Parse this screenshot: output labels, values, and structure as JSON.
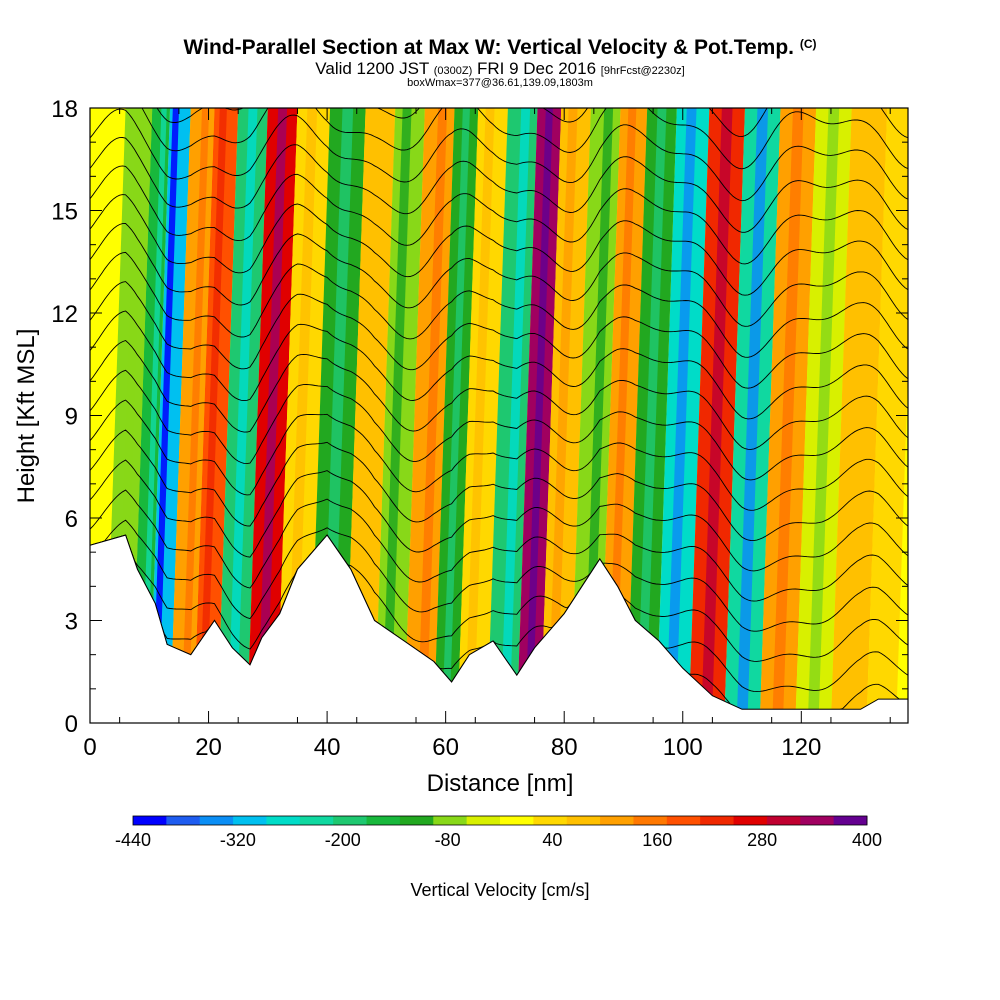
{
  "header": {
    "title": "Wind-Parallel Section at Max W: Vertical Velocity & Pot.Temp.",
    "copyright_mark": "(C)",
    "subtitle_main_a": "Valid 1200 JST ",
    "subtitle_utc": "(0300Z)",
    "subtitle_main_b": " FRI 9 Dec 2016 ",
    "subtitle_run": "[9hrFcst@2230z]",
    "subtitle_box": "boxWmax=377@36.61,139.09,1803m"
  },
  "chart_data": {
    "type": "heatmap",
    "title": "Wind-Parallel Section at Max W: Vertical Velocity & Pot.Temp.",
    "xlabel": "Distance [nm]",
    "ylabel": "Height [Kft MSL]",
    "xlim": [
      0,
      138
    ],
    "ylim": [
      0,
      18
    ],
    "x_ticks": [
      0,
      20,
      40,
      60,
      80,
      100,
      120
    ],
    "y_ticks": [
      0,
      3,
      6,
      9,
      12,
      15,
      18
    ],
    "colorbar": {
      "label": "Vertical Velocity [cm/s]",
      "tick_labels": [
        "-440",
        "-320",
        "-200",
        "-80",
        "40",
        "160",
        "280",
        "400"
      ],
      "levels": [
        -440,
        -400,
        -360,
        -320,
        -280,
        -240,
        -200,
        -160,
        -120,
        -80,
        -40,
        0,
        40,
        80,
        120,
        160,
        200,
        240,
        280,
        320,
        360,
        400
      ],
      "colors": [
        "#0000ff",
        "#1e5cf0",
        "#0a8ef5",
        "#00c0f0",
        "#00dcc8",
        "#10d8a0",
        "#1ec870",
        "#18b83c",
        "#22a820",
        "#88d818",
        "#d8f000",
        "#ffff00",
        "#ffd800",
        "#ffc000",
        "#ffa000",
        "#ff7800",
        "#ff5000",
        "#f02800",
        "#e00000",
        "#c00030",
        "#a00060",
        "#640090"
      ]
    },
    "vertical_velocity_bands": [
      {
        "x": 5,
        "w": -50
      },
      {
        "x": 9,
        "w": -160
      },
      {
        "x": 11,
        "w": -300
      },
      {
        "x": 16,
        "w": 120
      },
      {
        "x": 19,
        "w": 200
      },
      {
        "x": 24,
        "w": -180
      },
      {
        "x": 29,
        "w": 280
      },
      {
        "x": 34,
        "w": 60
      },
      {
        "x": 40,
        "w": -120
      },
      {
        "x": 46,
        "w": 80
      },
      {
        "x": 50,
        "w": -60
      },
      {
        "x": 56,
        "w": 120
      },
      {
        "x": 60,
        "w": -120
      },
      {
        "x": 64,
        "w": 60
      },
      {
        "x": 70,
        "w": -200
      },
      {
        "x": 74,
        "w": 377
      },
      {
        "x": 78,
        "w": 100
      },
      {
        "x": 84,
        "w": -80
      },
      {
        "x": 88,
        "w": 120
      },
      {
        "x": 93,
        "w": -120
      },
      {
        "x": 98,
        "w": -260
      },
      {
        "x": 104,
        "w": 240
      },
      {
        "x": 110,
        "w": -240
      },
      {
        "x": 116,
        "w": 120
      },
      {
        "x": 122,
        "w": -40
      },
      {
        "x": 128,
        "w": 80
      },
      {
        "x": 134,
        "w": 40
      }
    ],
    "terrain_kft": [
      [
        0,
        5.2
      ],
      [
        6,
        5.5
      ],
      [
        8,
        4.5
      ],
      [
        11,
        3.5
      ],
      [
        13,
        2.3
      ],
      [
        17,
        2
      ],
      [
        19,
        2.5
      ],
      [
        21,
        3
      ],
      [
        24,
        2.2
      ],
      [
        27,
        1.7
      ],
      [
        29,
        2.5
      ],
      [
        32,
        3.2
      ],
      [
        35,
        4.5
      ],
      [
        40,
        5.5
      ],
      [
        44,
        4.5
      ],
      [
        48,
        3
      ],
      [
        53,
        2.4
      ],
      [
        58,
        1.8
      ],
      [
        61,
        1.2
      ],
      [
        64,
        2
      ],
      [
        68,
        2.4
      ],
      [
        72,
        1.4
      ],
      [
        75,
        2.2
      ],
      [
        80,
        3.2
      ],
      [
        86,
        4.8
      ],
      [
        89,
        4
      ],
      [
        92,
        3
      ],
      [
        96,
        2.4
      ],
      [
        100,
        1.6
      ],
      [
        105,
        0.8
      ],
      [
        110,
        0.4
      ],
      [
        130,
        0.4
      ],
      [
        133,
        0.7
      ],
      [
        138,
        0.7
      ]
    ],
    "theta_contours_note": "Potential temperature isolines, wave-shaped, roughly every 0.9 kft"
  },
  "colorbar_label": "Vertical Velocity [cm/s]"
}
